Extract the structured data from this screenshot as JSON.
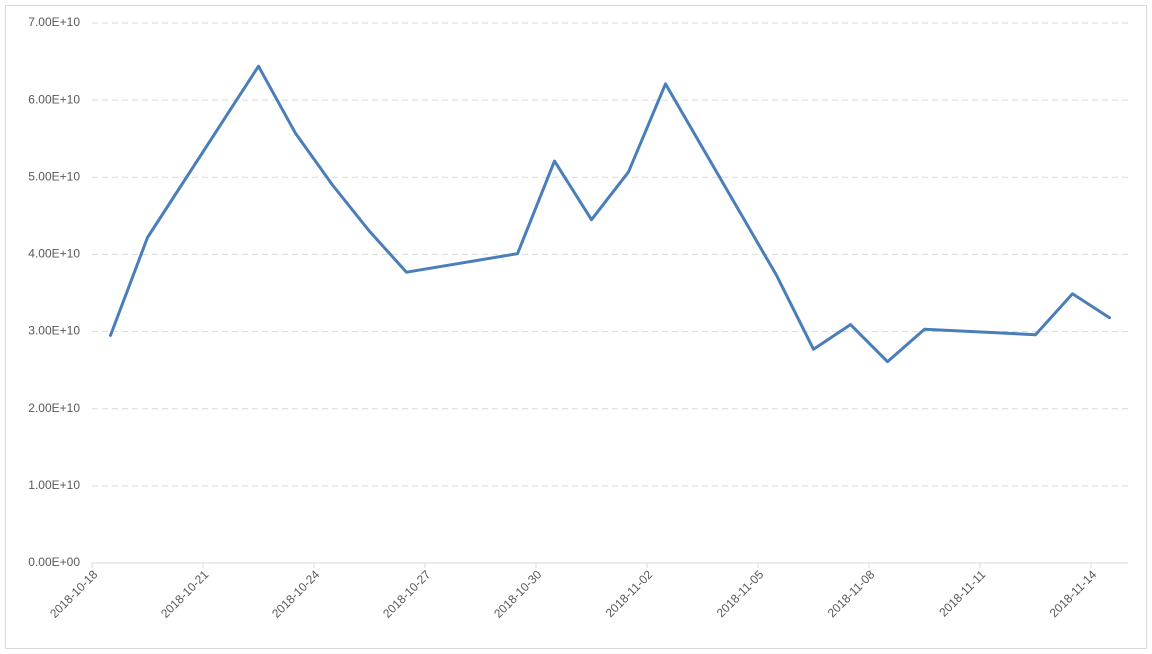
{
  "chart_data": {
    "type": "line",
    "x": [
      "2018-10-18",
      "2018-10-19",
      "2018-10-22",
      "2018-10-23",
      "2018-10-24",
      "2018-10-25",
      "2018-10-26",
      "2018-10-29",
      "2018-10-30",
      "2018-10-31",
      "2018-11-01",
      "2018-11-02",
      "2018-11-05",
      "2018-11-06",
      "2018-11-07",
      "2018-11-08",
      "2018-11-09",
      "2018-11-12",
      "2018-11-13",
      "2018-11-14"
    ],
    "values": [
      29500000000,
      42200000000,
      64400000000,
      55700000000,
      49000000000,
      43000000000,
      37700000000,
      40100000000,
      52100000000,
      44500000000,
      50700000000,
      62100000000,
      37300000000,
      27700000000,
      30900000000,
      26100000000,
      30300000000,
      29600000000,
      34900000000,
      31800000000
    ],
    "color": "#4a7ebb",
    "ylim": [
      0,
      70000000000
    ],
    "yticks": [
      {
        "value": 0,
        "label": "0.00E+00"
      },
      {
        "value": 10000000000,
        "label": "1.00E+10"
      },
      {
        "value": 20000000000,
        "label": "2.00E+10"
      },
      {
        "value": 30000000000,
        "label": "3.00E+10"
      },
      {
        "value": 40000000000,
        "label": "4.00E+10"
      },
      {
        "value": 50000000000,
        "label": "5.00E+10"
      },
      {
        "value": 60000000000,
        "label": "6.00E+10"
      },
      {
        "value": 70000000000,
        "label": "7.00E+10"
      }
    ],
    "xticks": [
      "2018-10-18",
      "2018-10-21",
      "2018-10-24",
      "2018-10-27",
      "2018-10-30",
      "2018-11-02",
      "2018-11-05",
      "2018-11-08",
      "2018-11-11",
      "2018-11-14"
    ],
    "grid": true
  }
}
